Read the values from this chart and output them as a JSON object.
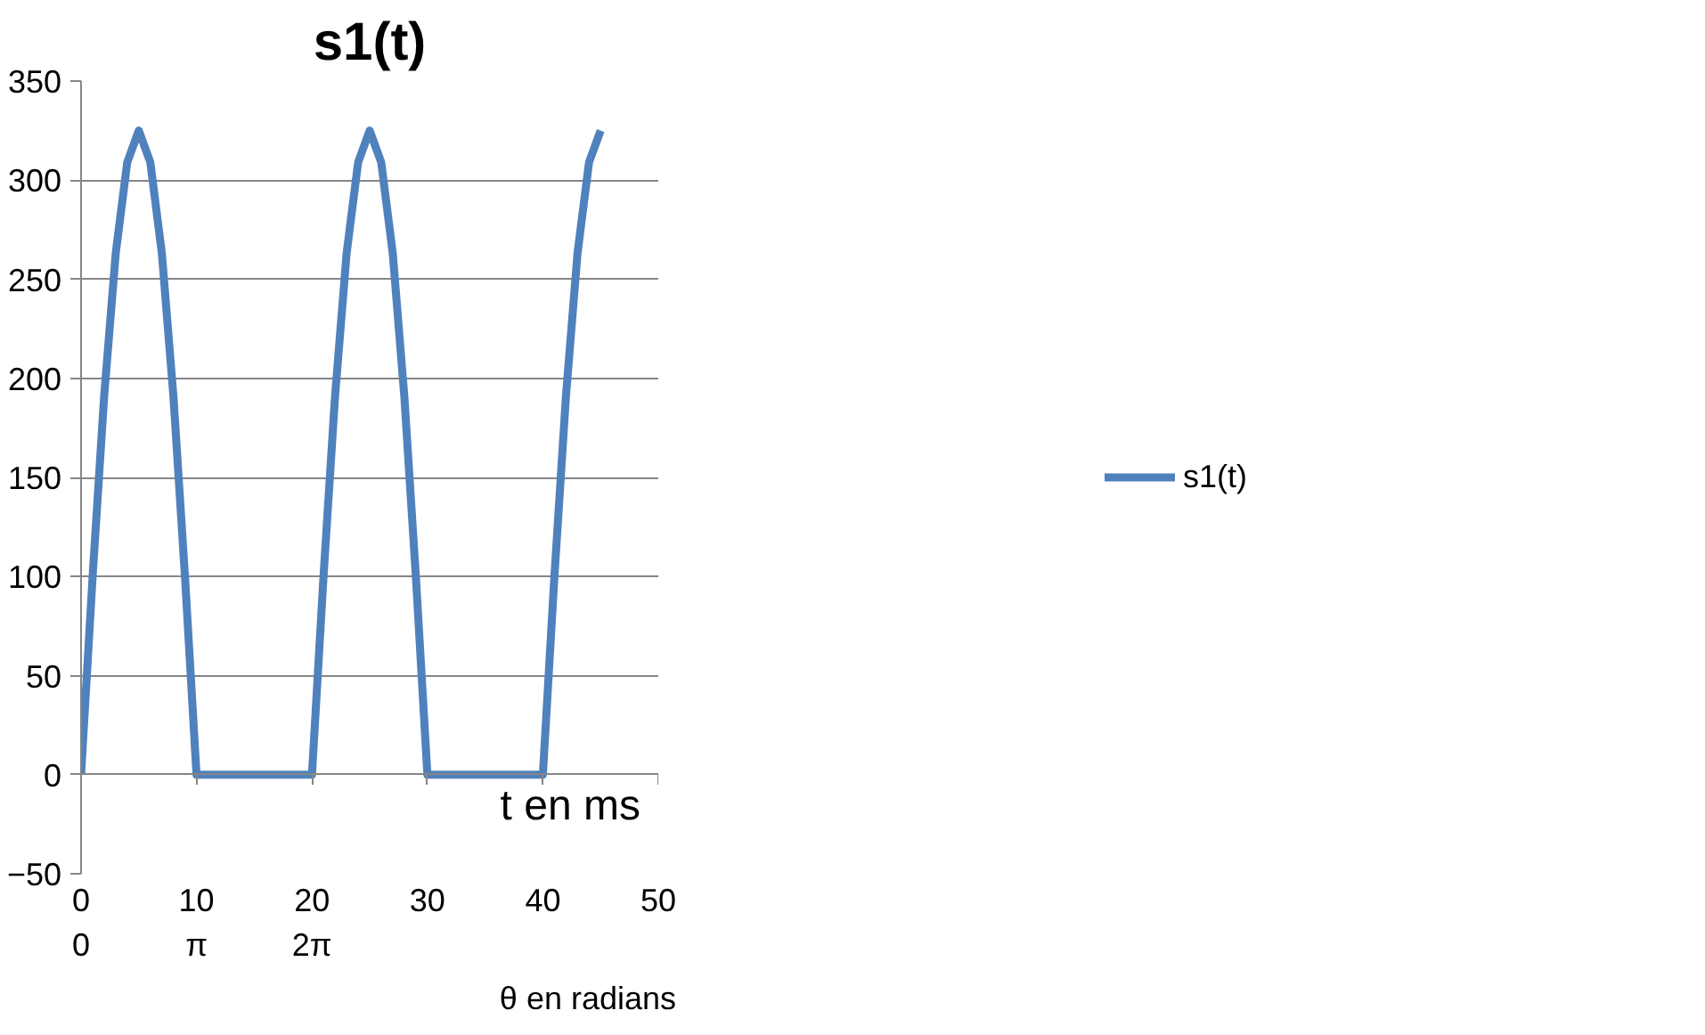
{
  "chart_data": {
    "type": "line",
    "title": "s1(t)",
    "xlabel": "t en ms",
    "x2label": "θ en radians",
    "x": [
      0,
      1,
      2,
      3,
      4,
      5,
      6,
      7,
      8,
      9,
      10,
      20,
      21,
      22,
      23,
      24,
      25,
      26,
      27,
      28,
      29,
      30,
      40,
      41,
      42,
      43,
      44,
      45
    ],
    "series": [
      {
        "name": "s1(t)",
        "color": "#4f81bd",
        "values": [
          0,
          100,
          191,
          263,
          309,
          325,
          309,
          263,
          191,
          100,
          0,
          0,
          100,
          191,
          263,
          309,
          325,
          309,
          263,
          191,
          100,
          0,
          0,
          100,
          191,
          263,
          309,
          325
        ]
      }
    ],
    "xlim": [
      0,
      50
    ],
    "xticks": [
      0,
      10,
      20,
      30,
      40,
      50
    ],
    "x2lim": [
      0,
      15.708
    ],
    "x2ticks": [
      {
        "value": 0,
        "label": "0"
      },
      {
        "value": 3.1416,
        "label": "π"
      },
      {
        "value": 6.2832,
        "label": "2π"
      }
    ],
    "ylim": [
      -50,
      350
    ],
    "yticks": [
      -50,
      0,
      50,
      100,
      150,
      200,
      250,
      300,
      350
    ],
    "grid": "y",
    "legend": "right",
    "marker": "none",
    "line_style": "solid"
  }
}
